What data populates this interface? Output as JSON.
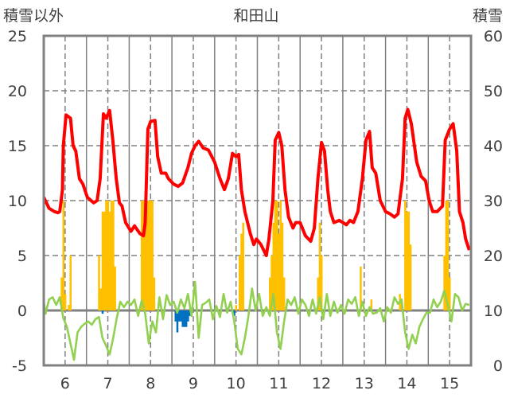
{
  "chart_data": {
    "type": "line",
    "title": "和田山",
    "ylabel_left": "積雪以外",
    "ylabel_right": "積雪",
    "ylim_left": [
      -5,
      25
    ],
    "ylim_right": [
      0,
      60
    ],
    "yticks_left": [
      25,
      20,
      15,
      10,
      5,
      0,
      -5
    ],
    "yticks_right": [
      60,
      50,
      40,
      30,
      20,
      10,
      0
    ],
    "x_unit": "hours since day 6 00:00",
    "xlim": [
      0,
      240
    ],
    "xtick_labels": [
      "6",
      "7",
      "8",
      "9",
      "10",
      "11",
      "12",
      "13",
      "14",
      "15"
    ],
    "grid": true,
    "colors": {
      "temperature": "#ff0000",
      "green_series": "#92d050",
      "orange_bars": "#ffc000",
      "blue_bars": "#0070c0",
      "frame": "#808080"
    },
    "series": [
      {
        "name": "red-line",
        "kind": "line",
        "points": [
          [
            0,
            10.3
          ],
          [
            3,
            9.3
          ],
          [
            6,
            9.0
          ],
          [
            8,
            8.9
          ],
          [
            9,
            9.0
          ],
          [
            10.5,
            11
          ],
          [
            11,
            15
          ],
          [
            12.5,
            17.8
          ],
          [
            15,
            17.5
          ],
          [
            16.5,
            15
          ],
          [
            18,
            14.5
          ],
          [
            20,
            12
          ],
          [
            22,
            11.5
          ],
          [
            24.5,
            10.3
          ],
          [
            28,
            9.8
          ],
          [
            30,
            10.0
          ],
          [
            31.7,
            12
          ],
          [
            33.5,
            17.9
          ],
          [
            35,
            17.5
          ],
          [
            37,
            18.2
          ],
          [
            38.8,
            15.5
          ],
          [
            40.7,
            12
          ],
          [
            42.5,
            9.8
          ],
          [
            44,
            9.5
          ],
          [
            46,
            8
          ],
          [
            49,
            7.2
          ],
          [
            51,
            7.7
          ],
          [
            54,
            7.0
          ],
          [
            56,
            6.8
          ],
          [
            57,
            8
          ],
          [
            58.5,
            16.5
          ],
          [
            60,
            17.2
          ],
          [
            62.5,
            17.3
          ],
          [
            64,
            14
          ],
          [
            66,
            12.5
          ],
          [
            68.5,
            12.5
          ],
          [
            70,
            12
          ],
          [
            73,
            11.5
          ],
          [
            75.5,
            11.3
          ],
          [
            78,
            11.6
          ],
          [
            81,
            13
          ],
          [
            83,
            14.3
          ],
          [
            85,
            15.0
          ],
          [
            87,
            15.4
          ],
          [
            89.5,
            14.8
          ],
          [
            92.5,
            14.6
          ],
          [
            96,
            13.5
          ],
          [
            99,
            12
          ],
          [
            101.5,
            11.0
          ],
          [
            103.7,
            12
          ],
          [
            106,
            14.3
          ],
          [
            108,
            14.0
          ],
          [
            109.5,
            14.2
          ],
          [
            111,
            11
          ],
          [
            113,
            9
          ],
          [
            116,
            7
          ],
          [
            118,
            6
          ],
          [
            119.5,
            6.5
          ],
          [
            122,
            6.0
          ],
          [
            125,
            5.0
          ],
          [
            126.5,
            6.5
          ],
          [
            128.7,
            10
          ],
          [
            130,
            15.5
          ],
          [
            132,
            16.2
          ],
          [
            133.7,
            15
          ],
          [
            135.5,
            11
          ],
          [
            137.5,
            8.5
          ],
          [
            140,
            7.5
          ],
          [
            141.5,
            8.0
          ],
          [
            144,
            8.0
          ],
          [
            147,
            6.8
          ],
          [
            150,
            6.3
          ],
          [
            152,
            7.5
          ],
          [
            154,
            12
          ],
          [
            156,
            15.3
          ],
          [
            157.7,
            14.5
          ],
          [
            159.5,
            11
          ],
          [
            161,
            9
          ],
          [
            163,
            8.0
          ],
          [
            166,
            8.2
          ],
          [
            168,
            8.0
          ],
          [
            170,
            7.8
          ],
          [
            172,
            8.2
          ],
          [
            174,
            8.0
          ],
          [
            176.5,
            9
          ],
          [
            179,
            12
          ],
          [
            181,
            15.5
          ],
          [
            183,
            16.3
          ],
          [
            184.5,
            13
          ],
          [
            186.5,
            12.5
          ],
          [
            189,
            10
          ],
          [
            192,
            9.0
          ],
          [
            194.5,
            8.8
          ],
          [
            197,
            8.5
          ],
          [
            199,
            8.8
          ],
          [
            201.5,
            12
          ],
          [
            203,
            17.5
          ],
          [
            204.5,
            18.3
          ],
          [
            206.5,
            17
          ],
          [
            209.5,
            13.5
          ],
          [
            212,
            12.2
          ],
          [
            214.5,
            11.8
          ],
          [
            216.5,
            10
          ],
          [
            218.5,
            9.0
          ],
          [
            221,
            9.0
          ],
          [
            224,
            9.5
          ],
          [
            225.5,
            15.5
          ],
          [
            228,
            16.5
          ],
          [
            230,
            17.0
          ],
          [
            232,
            14.5
          ],
          [
            233.5,
            9
          ],
          [
            235.5,
            8.0
          ],
          [
            237,
            6.5
          ],
          [
            239,
            5.5
          ]
        ]
      },
      {
        "name": "green-line",
        "kind": "line",
        "points": [
          [
            0,
            0.8
          ],
          [
            1,
            -0.3
          ],
          [
            3,
            1.0
          ],
          [
            5,
            1.2
          ],
          [
            7,
            0.5
          ],
          [
            9,
            1.2
          ],
          [
            11,
            -0.7
          ],
          [
            13,
            -1.5
          ],
          [
            15,
            -3
          ],
          [
            17,
            -4.5
          ],
          [
            19,
            -2
          ],
          [
            21,
            -1.5
          ],
          [
            23,
            -1.2
          ],
          [
            25,
            -1.0
          ],
          [
            27,
            -1.3
          ],
          [
            29,
            -0.8
          ],
          [
            31,
            -0.6
          ],
          [
            33,
            -2.5
          ],
          [
            35,
            -3.2
          ],
          [
            37,
            -4.0
          ],
          [
            39,
            -2.5
          ],
          [
            41,
            -0.7
          ],
          [
            43,
            0.8
          ],
          [
            45,
            0.3
          ],
          [
            47,
            0.8
          ],
          [
            49,
            0.5
          ],
          [
            51,
            1.0
          ],
          [
            53,
            -0.5
          ],
          [
            55,
            0.9
          ],
          [
            57,
            -0.3
          ],
          [
            59,
            -3.0
          ],
          [
            61,
            -1.0
          ],
          [
            63,
            -2.0
          ],
          [
            65,
            1.2
          ],
          [
            67,
            -0.8
          ],
          [
            69,
            1.4
          ],
          [
            71,
            0.5
          ],
          [
            73,
            0.8
          ],
          [
            75,
            -0.2
          ],
          [
            77,
            1.0
          ],
          [
            79,
            0.2
          ],
          [
            81,
            1.5
          ],
          [
            83,
            -0.5
          ],
          [
            85,
            2.6
          ],
          [
            87,
            -2.5
          ],
          [
            89,
            0.5
          ],
          [
            91,
            0.7
          ],
          [
            93,
            1.0
          ],
          [
            95,
            -0.8
          ],
          [
            97,
            0.4
          ],
          [
            99,
            -0.6
          ],
          [
            101,
            1.5
          ],
          [
            103,
            -0.2
          ],
          [
            105,
            0.8
          ],
          [
            107,
            -1.0
          ],
          [
            109,
            -3.5
          ],
          [
            111,
            -4.0
          ],
          [
            113,
            -2.5
          ],
          [
            115,
            -0.5
          ],
          [
            117,
            2.0
          ],
          [
            119,
            0
          ],
          [
            121,
            1.5
          ],
          [
            123,
            -0.5
          ],
          [
            125,
            0.3
          ],
          [
            127,
            -0.5
          ],
          [
            129,
            1.5
          ],
          [
            131,
            -2.0
          ],
          [
            133,
            -3.5
          ],
          [
            135,
            -1.0
          ],
          [
            137,
            1.0
          ],
          [
            139,
            0.5
          ],
          [
            141,
            1.2
          ],
          [
            143,
            -0.3
          ],
          [
            145,
            1.0
          ],
          [
            147,
            0.5
          ],
          [
            149,
            -0.5
          ],
          [
            151,
            1.0
          ],
          [
            153,
            -0.3
          ],
          [
            155,
            1.2
          ],
          [
            157,
            -0.8
          ],
          [
            159,
            1.5
          ],
          [
            161,
            -0.5
          ],
          [
            163,
            0.8
          ],
          [
            165,
            -0.2
          ],
          [
            167,
            0.5
          ],
          [
            169,
            -0.3
          ],
          [
            171,
            1.0
          ],
          [
            173,
            0.6
          ],
          [
            175,
            1.2
          ],
          [
            177,
            -0.5
          ],
          [
            179,
            0.8
          ],
          [
            181,
            -0.5
          ],
          [
            183,
            0.3
          ],
          [
            185,
            -0.3
          ],
          [
            187,
            -0.2
          ],
          [
            189,
            0.2
          ],
          [
            191,
            -1.0
          ],
          [
            193,
            0.3
          ],
          [
            195,
            -0.2
          ],
          [
            197,
            1.2
          ],
          [
            199,
            0.6
          ],
          [
            201,
            1.0
          ],
          [
            203,
            -2.0
          ],
          [
            205,
            -3.5
          ],
          [
            207,
            -2.2
          ],
          [
            209,
            -3.0
          ],
          [
            211,
            -1.5
          ],
          [
            213,
            -0.8
          ],
          [
            215,
            -0.2
          ],
          [
            217,
            -0.2
          ],
          [
            219,
            1.0
          ],
          [
            221,
            0.3
          ],
          [
            223,
            0.8
          ],
          [
            225,
            1.8
          ],
          [
            227,
            0.5
          ],
          [
            229,
            -1.0
          ],
          [
            231,
            1.5
          ],
          [
            233,
            1.2
          ],
          [
            235,
            0
          ],
          [
            237,
            0.6
          ],
          [
            239,
            0.5
          ]
        ]
      },
      {
        "name": "orange-bars",
        "kind": "bar",
        "points": [
          [
            10,
            3
          ],
          [
            11,
            10
          ],
          [
            12,
            1.5
          ],
          [
            14,
            0.5
          ],
          [
            15,
            5
          ],
          [
            31,
            5
          ],
          [
            32,
            2
          ],
          [
            33,
            9
          ],
          [
            34,
            9
          ],
          [
            35,
            10
          ],
          [
            36,
            10
          ],
          [
            37,
            9
          ],
          [
            38,
            10
          ],
          [
            39,
            10
          ],
          [
            40,
            4
          ],
          [
            55,
            10
          ],
          [
            56,
            10
          ],
          [
            57,
            10
          ],
          [
            58,
            10
          ],
          [
            59,
            10
          ],
          [
            60,
            10
          ],
          [
            61,
            10
          ],
          [
            62,
            3
          ],
          [
            108,
            0.5
          ],
          [
            110,
            5
          ],
          [
            111,
            7
          ],
          [
            112,
            8
          ],
          [
            127,
            3
          ],
          [
            128,
            5
          ],
          [
            129,
            8
          ],
          [
            130,
            10
          ],
          [
            131,
            10
          ],
          [
            132,
            7
          ],
          [
            133,
            10
          ],
          [
            134,
            8
          ],
          [
            135,
            3
          ],
          [
            154,
            3
          ],
          [
            155,
            8
          ],
          [
            156,
            5
          ],
          [
            178,
            4
          ],
          [
            184,
            1
          ],
          [
            200,
            1.5
          ],
          [
            201,
            1
          ],
          [
            203,
            10
          ],
          [
            204,
            9
          ],
          [
            205,
            9
          ],
          [
            206,
            6
          ],
          [
            225,
            5
          ],
          [
            226,
            10
          ],
          [
            227,
            10
          ],
          [
            228,
            3
          ]
        ]
      },
      {
        "name": "blue-bars",
        "kind": "bar",
        "points": [
          [
            33,
            -0.3
          ],
          [
            74,
            -1
          ],
          [
            75,
            -2
          ],
          [
            76,
            -1
          ],
          [
            77,
            -1
          ],
          [
            78,
            -1.5
          ],
          [
            79,
            -1.5
          ],
          [
            80,
            -1.5
          ],
          [
            81,
            -1
          ],
          [
            82,
            -0.5
          ],
          [
            107,
            -0.5
          ]
        ]
      }
    ]
  }
}
